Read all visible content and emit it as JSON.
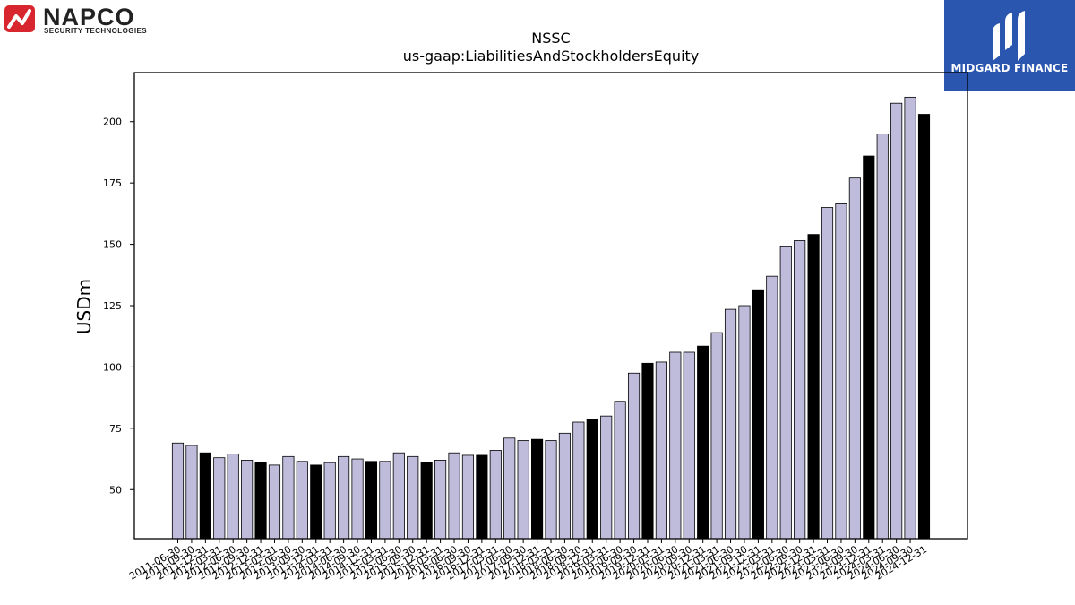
{
  "logos": {
    "left": {
      "name": "NAPCO",
      "tagline": "SECURITY TECHNOLOGIES",
      "accent": "#d7262e"
    },
    "right": {
      "name": "MIDGARD FINANCE",
      "background": "#2b56b0"
    }
  },
  "chart_data": {
    "type": "bar",
    "title": "NSSC",
    "subtitle": "us-gaap:LiabilitiesAndStockholdersEquity",
    "xlabel": "",
    "ylabel": "USDm",
    "ylim": [
      30,
      220
    ],
    "yticks": [
      50,
      75,
      100,
      125,
      150,
      175,
      200
    ],
    "grid": false,
    "colors": {
      "default": "#bfbcdb",
      "fiscal_year_end": "#000000",
      "edge": "#000000"
    },
    "categories": [
      "2011-06-30",
      "2011-09-30",
      "2011-12-31",
      "2012-03-31",
      "2012-06-30",
      "2012-09-30",
      "2012-12-31",
      "2013-03-31",
      "2013-06-30",
      "2013-09-30",
      "2013-12-31",
      "2014-03-31",
      "2014-06-30",
      "2014-09-30",
      "2014-12-31",
      "2015-03-31",
      "2015-06-30",
      "2015-09-30",
      "2015-12-31",
      "2016-03-31",
      "2016-06-30",
      "2016-09-30",
      "2016-12-31",
      "2017-03-31",
      "2017-06-30",
      "2017-09-30",
      "2017-12-31",
      "2018-03-31",
      "2018-06-30",
      "2018-09-30",
      "2018-12-31",
      "2019-03-31",
      "2019-06-30",
      "2019-09-30",
      "2019-12-31",
      "2020-03-31",
      "2020-06-30",
      "2020-09-30",
      "2020-12-31",
      "2021-03-31",
      "2021-06-30",
      "2021-09-30",
      "2021-12-31",
      "2022-03-31",
      "2022-06-30",
      "2022-09-30",
      "2022-12-31",
      "2023-03-31",
      "2023-06-30",
      "2023-09-30",
      "2023-12-31",
      "2024-03-31",
      "2024-06-30",
      "2024-09-30",
      "2024-12-31"
    ],
    "values": [
      69,
      68,
      65,
      63,
      64.5,
      62,
      61,
      60,
      63.5,
      61.5,
      60,
      61,
      63.5,
      62.5,
      61.5,
      61.5,
      65,
      63.5,
      61,
      62,
      65,
      64,
      64,
      66,
      71,
      70,
      70.5,
      70,
      73,
      77.5,
      78.5,
      80,
      86,
      97.5,
      101.5,
      102,
      106,
      106,
      108.5,
      114,
      123.5,
      125,
      131.5,
      137,
      149,
      151.5,
      154,
      165,
      166.5,
      177,
      186,
      195,
      207.5,
      210,
      203
    ],
    "highlighted": [
      false,
      false,
      true,
      false,
      false,
      false,
      true,
      false,
      false,
      false,
      true,
      false,
      false,
      false,
      true,
      false,
      false,
      false,
      true,
      false,
      false,
      false,
      true,
      false,
      false,
      false,
      true,
      false,
      false,
      false,
      true,
      false,
      false,
      false,
      true,
      false,
      false,
      false,
      true,
      false,
      false,
      false,
      true,
      false,
      false,
      false,
      true,
      false,
      false,
      false,
      true,
      false,
      false,
      false,
      true
    ]
  }
}
